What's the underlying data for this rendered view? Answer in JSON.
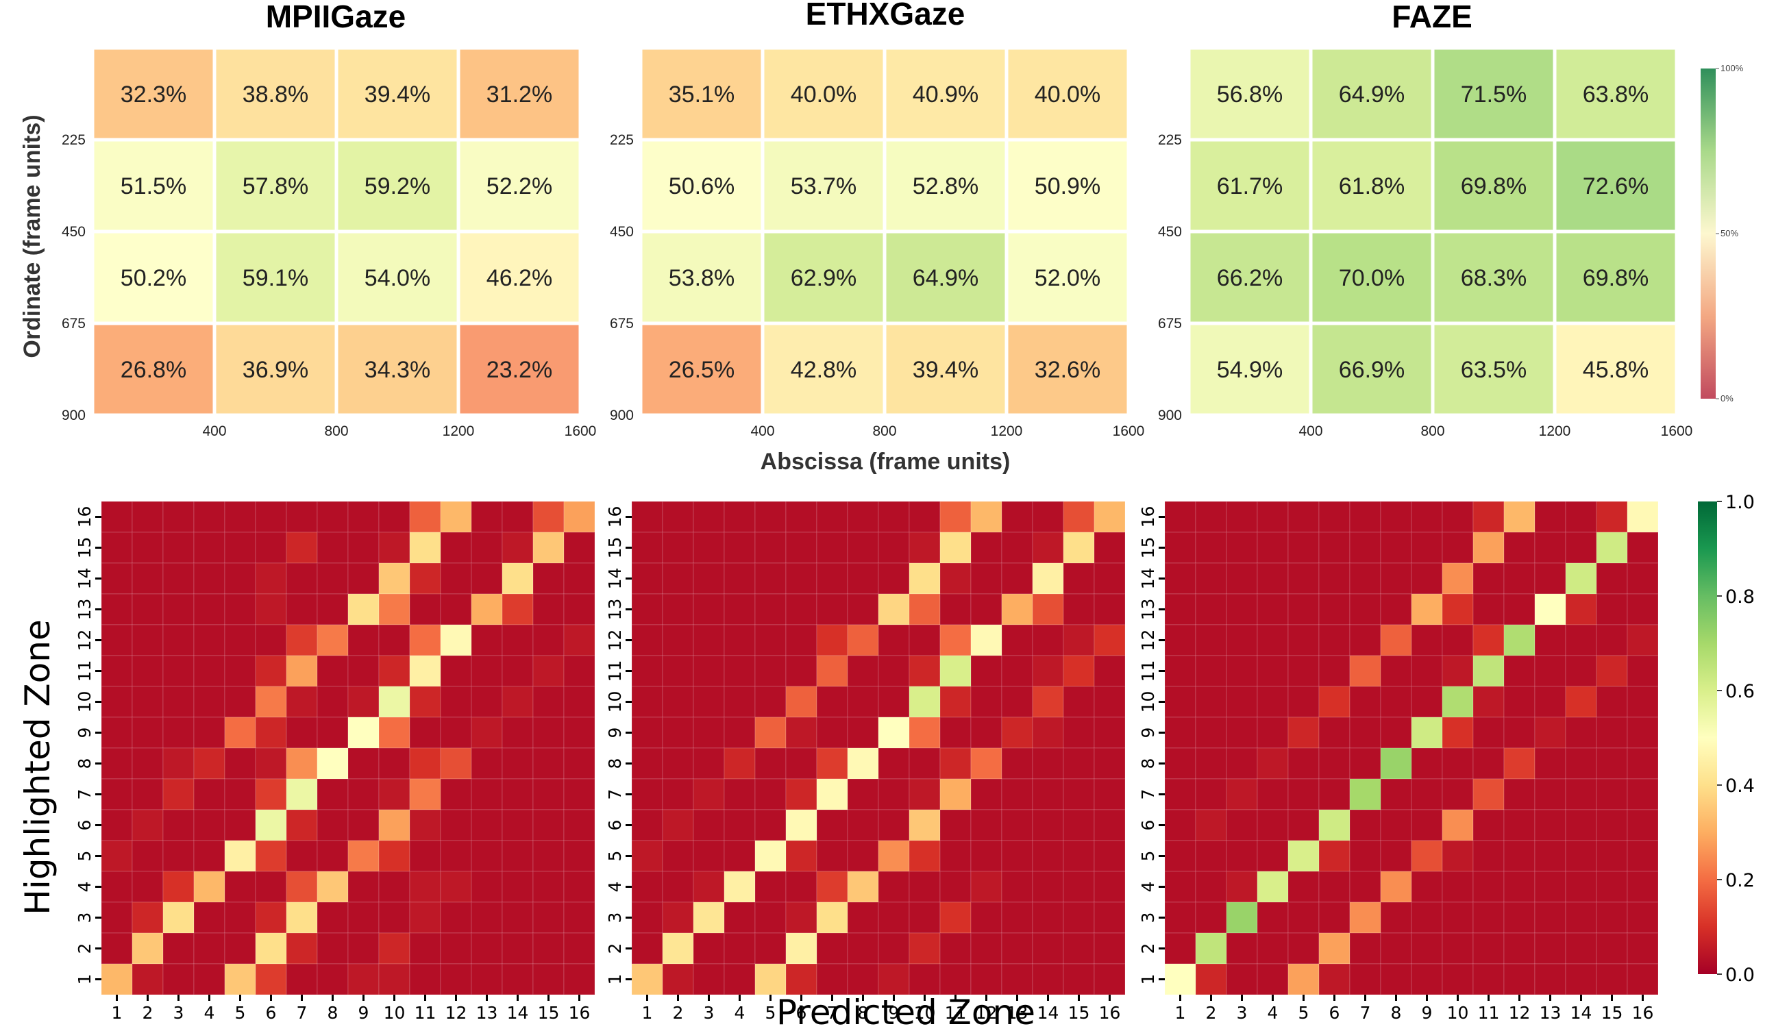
{
  "chart_data": [
    {
      "type": "heatmap",
      "title": "MPIIGaze",
      "xlabel": "Abscissa (frame units)",
      "ylabel": "Ordinate (frame units)",
      "x_ticks": [
        "400",
        "800",
        "1200",
        "1600"
      ],
      "y_ticks": [
        "225",
        "450",
        "675",
        "900"
      ],
      "values": [
        [
          32.3,
          38.8,
          39.4,
          31.2
        ],
        [
          51.5,
          57.8,
          59.2,
          52.2
        ],
        [
          50.2,
          59.1,
          54.0,
          46.2
        ],
        [
          26.8,
          36.9,
          34.3,
          23.2
        ]
      ],
      "labels": [
        [
          "32.3%",
          "38.8%",
          "39.4%",
          "31.2%"
        ],
        [
          "51.5%",
          "57.8%",
          "59.2%",
          "52.2%"
        ],
        [
          "50.2%",
          "59.1%",
          "54.0%",
          "46.2%"
        ],
        [
          "26.8%",
          "36.9%",
          "34.3%",
          "23.2%"
        ]
      ]
    },
    {
      "type": "heatmap",
      "title": "ETHXGaze",
      "xlabel": "Abscissa (frame units)",
      "ylabel": "Ordinate (frame units)",
      "x_ticks": [
        "400",
        "800",
        "1200",
        "1600"
      ],
      "y_ticks": [
        "225",
        "450",
        "675",
        "900"
      ],
      "values": [
        [
          35.1,
          40.0,
          40.9,
          40.0
        ],
        [
          50.6,
          53.7,
          52.8,
          50.9
        ],
        [
          53.8,
          62.9,
          64.9,
          52.0
        ],
        [
          26.5,
          42.8,
          39.4,
          32.6
        ]
      ],
      "labels": [
        [
          "35.1%",
          "40.0%",
          "40.9%",
          "40.0%"
        ],
        [
          "50.6%",
          "53.7%",
          "52.8%",
          "50.9%"
        ],
        [
          "53.8%",
          "62.9%",
          "64.9%",
          "52.0%"
        ],
        [
          "26.5%",
          "42.8%",
          "39.4%",
          "32.6%"
        ]
      ]
    },
    {
      "type": "heatmap",
      "title": "FAZE",
      "xlabel": "Abscissa (frame units)",
      "ylabel": "Ordinate (frame units)",
      "x_ticks": [
        "400",
        "800",
        "1200",
        "1600"
      ],
      "y_ticks": [
        "225",
        "450",
        "675",
        "900"
      ],
      "values": [
        [
          56.8,
          64.9,
          71.5,
          63.8
        ],
        [
          61.7,
          61.8,
          69.8,
          72.6
        ],
        [
          66.2,
          70.0,
          68.3,
          69.8
        ],
        [
          54.9,
          66.9,
          63.5,
          45.8
        ]
      ],
      "labels": [
        [
          "56.8%",
          "64.9%",
          "71.5%",
          "63.8%"
        ],
        [
          "61.7%",
          "61.8%",
          "69.8%",
          "72.6%"
        ],
        [
          "66.2%",
          "70.0%",
          "68.3%",
          "69.8%"
        ],
        [
          "54.9%",
          "66.9%",
          "63.5%",
          "45.8%"
        ]
      ]
    },
    {
      "type": "heatmap",
      "xlabel": "Predicted Zone",
      "ylabel": "Highlighted Zone",
      "zones": [
        "1",
        "2",
        "3",
        "4",
        "5",
        "6",
        "7",
        "8",
        "9",
        "10",
        "11",
        "12",
        "13",
        "14",
        "15",
        "16"
      ],
      "rows_top_to_bottom": [
        [
          0.03,
          0.03,
          0.03,
          0.03,
          0.03,
          0.03,
          0.03,
          0.03,
          0.03,
          0.03,
          0.18,
          0.32,
          0.03,
          0.03,
          0.15,
          0.28
        ],
        [
          0.03,
          0.03,
          0.03,
          0.03,
          0.03,
          0.03,
          0.08,
          0.03,
          0.03,
          0.05,
          0.4,
          0.03,
          0.03,
          0.05,
          0.35,
          0.03
        ],
        [
          0.03,
          0.03,
          0.03,
          0.03,
          0.03,
          0.05,
          0.03,
          0.03,
          0.03,
          0.35,
          0.08,
          0.03,
          0.03,
          0.4,
          0.03,
          0.03
        ],
        [
          0.03,
          0.03,
          0.03,
          0.03,
          0.03,
          0.05,
          0.03,
          0.03,
          0.4,
          0.22,
          0.03,
          0.03,
          0.3,
          0.12,
          0.03,
          0.03
        ],
        [
          0.03,
          0.03,
          0.03,
          0.03,
          0.03,
          0.03,
          0.12,
          0.22,
          0.03,
          0.03,
          0.2,
          0.48,
          0.03,
          0.03,
          0.03,
          0.05
        ],
        [
          0.03,
          0.03,
          0.03,
          0.03,
          0.03,
          0.08,
          0.28,
          0.03,
          0.03,
          0.08,
          0.45,
          0.03,
          0.03,
          0.03,
          0.05,
          0.03
        ],
        [
          0.03,
          0.03,
          0.03,
          0.03,
          0.03,
          0.22,
          0.05,
          0.03,
          0.05,
          0.55,
          0.08,
          0.03,
          0.03,
          0.05,
          0.03,
          0.03
        ],
        [
          0.03,
          0.03,
          0.03,
          0.03,
          0.2,
          0.08,
          0.03,
          0.03,
          0.5,
          0.2,
          0.03,
          0.03,
          0.05,
          0.03,
          0.03,
          0.03
        ],
        [
          0.03,
          0.03,
          0.05,
          0.08,
          0.03,
          0.05,
          0.25,
          0.5,
          0.03,
          0.03,
          0.1,
          0.15,
          0.03,
          0.03,
          0.03,
          0.03
        ],
        [
          0.03,
          0.03,
          0.08,
          0.03,
          0.03,
          0.12,
          0.55,
          0.03,
          0.03,
          0.05,
          0.22,
          0.03,
          0.03,
          0.03,
          0.03,
          0.03
        ],
        [
          0.03,
          0.05,
          0.03,
          0.03,
          0.03,
          0.55,
          0.08,
          0.03,
          0.03,
          0.28,
          0.05,
          0.03,
          0.03,
          0.03,
          0.03,
          0.03
        ],
        [
          0.05,
          0.03,
          0.03,
          0.03,
          0.45,
          0.12,
          0.03,
          0.03,
          0.22,
          0.1,
          0.03,
          0.03,
          0.03,
          0.03,
          0.03,
          0.03
        ],
        [
          0.03,
          0.03,
          0.1,
          0.32,
          0.03,
          0.03,
          0.15,
          0.35,
          0.03,
          0.03,
          0.05,
          0.05,
          0.03,
          0.03,
          0.03,
          0.03
        ],
        [
          0.03,
          0.08,
          0.4,
          0.03,
          0.03,
          0.08,
          0.4,
          0.03,
          0.03,
          0.03,
          0.05,
          0.03,
          0.03,
          0.03,
          0.03,
          0.03
        ],
        [
          0.03,
          0.35,
          0.03,
          0.03,
          0.03,
          0.4,
          0.08,
          0.03,
          0.03,
          0.08,
          0.03,
          0.03,
          0.03,
          0.03,
          0.03,
          0.03
        ],
        [
          0.32,
          0.05,
          0.03,
          0.03,
          0.35,
          0.12,
          0.03,
          0.03,
          0.05,
          0.05,
          0.03,
          0.03,
          0.03,
          0.03,
          0.03,
          0.03
        ]
      ]
    },
    {
      "type": "heatmap",
      "xlabel": "Predicted Zone",
      "ylabel": "Highlighted Zone",
      "zones": [
        "1",
        "2",
        "3",
        "4",
        "5",
        "6",
        "7",
        "8",
        "9",
        "10",
        "11",
        "12",
        "13",
        "14",
        "15",
        "16"
      ],
      "rows_top_to_bottom": [
        [
          0.03,
          0.03,
          0.03,
          0.03,
          0.03,
          0.03,
          0.03,
          0.03,
          0.03,
          0.03,
          0.18,
          0.32,
          0.03,
          0.03,
          0.15,
          0.32
        ],
        [
          0.03,
          0.03,
          0.03,
          0.03,
          0.03,
          0.03,
          0.03,
          0.03,
          0.03,
          0.05,
          0.4,
          0.03,
          0.03,
          0.05,
          0.4,
          0.03
        ],
        [
          0.03,
          0.03,
          0.03,
          0.03,
          0.03,
          0.03,
          0.03,
          0.03,
          0.03,
          0.4,
          0.05,
          0.03,
          0.03,
          0.45,
          0.03,
          0.03
        ],
        [
          0.03,
          0.03,
          0.03,
          0.03,
          0.03,
          0.03,
          0.03,
          0.03,
          0.38,
          0.18,
          0.03,
          0.03,
          0.3,
          0.15,
          0.03,
          0.03
        ],
        [
          0.03,
          0.03,
          0.03,
          0.03,
          0.03,
          0.03,
          0.1,
          0.18,
          0.03,
          0.03,
          0.2,
          0.48,
          0.03,
          0.03,
          0.05,
          0.1
        ],
        [
          0.03,
          0.03,
          0.03,
          0.03,
          0.03,
          0.03,
          0.18,
          0.03,
          0.03,
          0.08,
          0.6,
          0.03,
          0.03,
          0.05,
          0.1,
          0.03
        ],
        [
          0.03,
          0.03,
          0.03,
          0.03,
          0.03,
          0.18,
          0.03,
          0.03,
          0.03,
          0.6,
          0.08,
          0.03,
          0.03,
          0.12,
          0.03,
          0.03
        ],
        [
          0.03,
          0.03,
          0.03,
          0.03,
          0.18,
          0.05,
          0.03,
          0.03,
          0.5,
          0.2,
          0.03,
          0.03,
          0.08,
          0.05,
          0.03,
          0.03
        ],
        [
          0.03,
          0.03,
          0.03,
          0.08,
          0.03,
          0.03,
          0.12,
          0.48,
          0.03,
          0.03,
          0.08,
          0.2,
          0.03,
          0.03,
          0.03,
          0.03
        ],
        [
          0.03,
          0.03,
          0.05,
          0.03,
          0.03,
          0.08,
          0.48,
          0.03,
          0.03,
          0.05,
          0.3,
          0.03,
          0.03,
          0.03,
          0.03,
          0.03
        ],
        [
          0.03,
          0.05,
          0.03,
          0.03,
          0.03,
          0.48,
          0.03,
          0.03,
          0.03,
          0.35,
          0.03,
          0.03,
          0.03,
          0.03,
          0.03,
          0.03
        ],
        [
          0.05,
          0.03,
          0.03,
          0.03,
          0.48,
          0.08,
          0.03,
          0.03,
          0.25,
          0.1,
          0.03,
          0.03,
          0.03,
          0.03,
          0.03,
          0.03
        ],
        [
          0.03,
          0.03,
          0.05,
          0.45,
          0.03,
          0.03,
          0.12,
          0.35,
          0.03,
          0.03,
          0.03,
          0.05,
          0.03,
          0.03,
          0.03,
          0.03
        ],
        [
          0.03,
          0.05,
          0.42,
          0.03,
          0.03,
          0.05,
          0.4,
          0.03,
          0.03,
          0.03,
          0.1,
          0.03,
          0.03,
          0.03,
          0.03,
          0.03
        ],
        [
          0.03,
          0.42,
          0.03,
          0.03,
          0.03,
          0.45,
          0.03,
          0.03,
          0.03,
          0.08,
          0.03,
          0.03,
          0.03,
          0.03,
          0.03,
          0.03
        ],
        [
          0.35,
          0.05,
          0.03,
          0.03,
          0.38,
          0.08,
          0.03,
          0.03,
          0.05,
          0.03,
          0.03,
          0.03,
          0.03,
          0.03,
          0.03,
          0.03
        ]
      ]
    },
    {
      "type": "heatmap",
      "xlabel": "Predicted Zone",
      "ylabel": "Highlighted Zone",
      "zones": [
        "1",
        "2",
        "3",
        "4",
        "5",
        "6",
        "7",
        "8",
        "9",
        "10",
        "11",
        "12",
        "13",
        "14",
        "15",
        "16"
      ],
      "rows_top_to_bottom": [
        [
          0.03,
          0.03,
          0.03,
          0.03,
          0.03,
          0.03,
          0.03,
          0.03,
          0.03,
          0.03,
          0.08,
          0.32,
          0.03,
          0.03,
          0.08,
          0.48
        ],
        [
          0.03,
          0.03,
          0.03,
          0.03,
          0.03,
          0.03,
          0.03,
          0.03,
          0.03,
          0.03,
          0.28,
          0.03,
          0.03,
          0.03,
          0.62,
          0.03
        ],
        [
          0.03,
          0.03,
          0.03,
          0.03,
          0.03,
          0.03,
          0.03,
          0.03,
          0.03,
          0.25,
          0.03,
          0.03,
          0.03,
          0.62,
          0.03,
          0.03
        ],
        [
          0.03,
          0.03,
          0.03,
          0.03,
          0.03,
          0.03,
          0.03,
          0.03,
          0.3,
          0.1,
          0.03,
          0.03,
          0.5,
          0.08,
          0.03,
          0.03
        ],
        [
          0.03,
          0.03,
          0.03,
          0.03,
          0.03,
          0.03,
          0.03,
          0.18,
          0.03,
          0.03,
          0.1,
          0.68,
          0.03,
          0.03,
          0.03,
          0.05
        ],
        [
          0.03,
          0.03,
          0.03,
          0.03,
          0.03,
          0.03,
          0.18,
          0.03,
          0.03,
          0.05,
          0.65,
          0.03,
          0.03,
          0.03,
          0.08,
          0.03
        ],
        [
          0.03,
          0.03,
          0.03,
          0.03,
          0.03,
          0.1,
          0.03,
          0.03,
          0.03,
          0.68,
          0.05,
          0.03,
          0.03,
          0.1,
          0.03,
          0.03
        ],
        [
          0.03,
          0.03,
          0.03,
          0.03,
          0.08,
          0.03,
          0.03,
          0.03,
          0.62,
          0.1,
          0.03,
          0.03,
          0.05,
          0.03,
          0.03,
          0.03
        ],
        [
          0.03,
          0.03,
          0.03,
          0.05,
          0.03,
          0.03,
          0.03,
          0.72,
          0.03,
          0.03,
          0.03,
          0.12,
          0.03,
          0.03,
          0.03,
          0.03
        ],
        [
          0.03,
          0.03,
          0.05,
          0.03,
          0.03,
          0.03,
          0.7,
          0.03,
          0.03,
          0.03,
          0.15,
          0.03,
          0.03,
          0.03,
          0.03,
          0.03
        ],
        [
          0.03,
          0.05,
          0.03,
          0.03,
          0.03,
          0.62,
          0.03,
          0.03,
          0.03,
          0.25,
          0.03,
          0.03,
          0.03,
          0.03,
          0.03,
          0.03
        ],
        [
          0.03,
          0.03,
          0.03,
          0.03,
          0.6,
          0.08,
          0.03,
          0.03,
          0.15,
          0.05,
          0.03,
          0.03,
          0.03,
          0.03,
          0.03,
          0.03
        ],
        [
          0.03,
          0.03,
          0.05,
          0.6,
          0.03,
          0.03,
          0.03,
          0.25,
          0.03,
          0.03,
          0.03,
          0.03,
          0.03,
          0.03,
          0.03,
          0.03
        ],
        [
          0.03,
          0.03,
          0.72,
          0.03,
          0.03,
          0.03,
          0.25,
          0.03,
          0.03,
          0.03,
          0.03,
          0.03,
          0.03,
          0.03,
          0.03,
          0.03
        ],
        [
          0.03,
          0.65,
          0.03,
          0.03,
          0.03,
          0.28,
          0.03,
          0.03,
          0.03,
          0.03,
          0.03,
          0.03,
          0.03,
          0.03,
          0.03,
          0.03
        ],
        [
          0.5,
          0.08,
          0.03,
          0.03,
          0.28,
          0.05,
          0.03,
          0.03,
          0.03,
          0.03,
          0.03,
          0.03,
          0.03,
          0.03,
          0.03,
          0.03
        ]
      ]
    }
  ],
  "colorbar_top": {
    "labels": [
      "100%",
      "50%",
      "0%"
    ],
    "range": [
      0,
      100
    ]
  },
  "colorbar_bottom": {
    "labels": [
      "1.0",
      "0.8",
      "0.6",
      "0.4",
      "0.2",
      "0.0"
    ],
    "range": [
      0,
      1
    ]
  },
  "colors": {
    "scale": [
      "#a50026",
      "#d73027",
      "#f46d43",
      "#fdae61",
      "#fee08b",
      "#ffffbf",
      "#d9ef8b",
      "#a6d96a",
      "#66bd63",
      "#1a9850",
      "#006837"
    ]
  }
}
